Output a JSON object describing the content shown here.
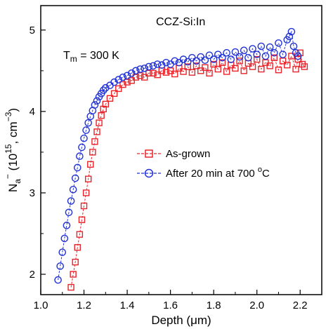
{
  "chart_data": {
    "type": "scatter",
    "title": "",
    "xlabel": {
      "text": "Depth (",
      "mu": "μ",
      "unit": "m)"
    },
    "ylabel": {
      "base": "N",
      "sub": "a",
      "sup": "−",
      "mid": " (10",
      "exp": "15",
      "tail": ", cm",
      "tail_exp": "−3",
      "close": ")"
    },
    "xlim": [
      1.0,
      2.3
    ],
    "ylim": [
      1.75,
      5.3
    ],
    "xticks": [
      "1.0",
      "1.2",
      "1.4",
      "1.6",
      "1.8",
      "2.0",
      "2.2"
    ],
    "yticks": [
      "2",
      "3",
      "4",
      "5"
    ],
    "grid": false,
    "legend_position": "center-right",
    "annotations": {
      "sample": "CCZ-Si:In",
      "temp_base": "T",
      "temp_sub": "m",
      "temp_val": " = 300 K"
    },
    "series": [
      {
        "name": "As-grown",
        "color": "#e8232a",
        "marker": "square",
        "points": [
          [
            1.14,
            1.84
          ],
          [
            1.15,
            2.0
          ],
          [
            1.16,
            2.15
          ],
          [
            1.17,
            2.33
          ],
          [
            1.18,
            2.49
          ],
          [
            1.19,
            2.67
          ],
          [
            1.2,
            2.84
          ],
          [
            1.21,
            3.0
          ],
          [
            1.22,
            3.17
          ],
          [
            1.23,
            3.35
          ],
          [
            1.24,
            3.5
          ],
          [
            1.25,
            3.63
          ],
          [
            1.26,
            3.75
          ],
          [
            1.27,
            3.86
          ],
          [
            1.28,
            3.95
          ],
          [
            1.29,
            4.03
          ],
          [
            1.3,
            4.09
          ],
          [
            1.32,
            4.16
          ],
          [
            1.34,
            4.22
          ],
          [
            1.36,
            4.28
          ],
          [
            1.38,
            4.33
          ],
          [
            1.4,
            4.36
          ],
          [
            1.42,
            4.38
          ],
          [
            1.44,
            4.42
          ],
          [
            1.46,
            4.44
          ],
          [
            1.48,
            4.42
          ],
          [
            1.5,
            4.47
          ],
          [
            1.52,
            4.47
          ],
          [
            1.54,
            4.45
          ],
          [
            1.56,
            4.5
          ],
          [
            1.58,
            4.48
          ],
          [
            1.6,
            4.5
          ],
          [
            1.62,
            4.46
          ],
          [
            1.64,
            4.53
          ],
          [
            1.66,
            4.49
          ],
          [
            1.68,
            4.55
          ],
          [
            1.7,
            4.48
          ],
          [
            1.72,
            4.56
          ],
          [
            1.74,
            4.5
          ],
          [
            1.76,
            4.54
          ],
          [
            1.78,
            4.47
          ],
          [
            1.8,
            4.58
          ],
          [
            1.82,
            4.52
          ],
          [
            1.84,
            4.6
          ],
          [
            1.86,
            4.49
          ],
          [
            1.88,
            4.57
          ],
          [
            1.9,
            4.53
          ],
          [
            1.92,
            4.62
          ],
          [
            1.94,
            4.5
          ],
          [
            1.96,
            4.59
          ],
          [
            1.98,
            4.55
          ],
          [
            2.0,
            4.64
          ],
          [
            2.02,
            4.52
          ],
          [
            2.04,
            4.6
          ],
          [
            2.06,
            4.56
          ],
          [
            2.08,
            4.66
          ],
          [
            2.1,
            4.51
          ],
          [
            2.12,
            4.62
          ],
          [
            2.14,
            4.57
          ],
          [
            2.16,
            4.68
          ],
          [
            2.18,
            4.52
          ],
          [
            2.19,
            4.64
          ],
          [
            2.2,
            4.72
          ],
          [
            2.21,
            4.58
          ],
          [
            2.22,
            4.55
          ]
        ]
      },
      {
        "name": "After 20 min at 700 °C",
        "name_base": "After 20 min at 700 ",
        "name_sup": "o",
        "name_tail": "C",
        "color": "#2233d6",
        "marker": "circle",
        "points": [
          [
            1.08,
            1.93
          ],
          [
            1.09,
            2.1
          ],
          [
            1.1,
            2.27
          ],
          [
            1.11,
            2.44
          ],
          [
            1.12,
            2.6
          ],
          [
            1.13,
            2.76
          ],
          [
            1.14,
            2.9
          ],
          [
            1.15,
            3.04
          ],
          [
            1.16,
            3.18
          ],
          [
            1.17,
            3.31
          ],
          [
            1.18,
            3.45
          ],
          [
            1.19,
            3.56
          ],
          [
            1.2,
            3.67
          ],
          [
            1.21,
            3.77
          ],
          [
            1.22,
            3.86
          ],
          [
            1.23,
            3.94
          ],
          [
            1.24,
            4.01
          ],
          [
            1.25,
            4.08
          ],
          [
            1.26,
            4.13
          ],
          [
            1.27,
            4.18
          ],
          [
            1.28,
            4.22
          ],
          [
            1.29,
            4.26
          ],
          [
            1.3,
            4.29
          ],
          [
            1.32,
            4.32
          ],
          [
            1.34,
            4.36
          ],
          [
            1.36,
            4.39
          ],
          [
            1.38,
            4.42
          ],
          [
            1.4,
            4.44
          ],
          [
            1.42,
            4.47
          ],
          [
            1.44,
            4.5
          ],
          [
            1.46,
            4.52
          ],
          [
            1.48,
            4.53
          ],
          [
            1.5,
            4.55
          ],
          [
            1.52,
            4.56
          ],
          [
            1.54,
            4.58
          ],
          [
            1.56,
            4.57
          ],
          [
            1.58,
            4.6
          ],
          [
            1.6,
            4.58
          ],
          [
            1.62,
            4.62
          ],
          [
            1.64,
            4.6
          ],
          [
            1.66,
            4.64
          ],
          [
            1.68,
            4.61
          ],
          [
            1.7,
            4.66
          ],
          [
            1.72,
            4.62
          ],
          [
            1.74,
            4.67
          ],
          [
            1.76,
            4.63
          ],
          [
            1.78,
            4.69
          ],
          [
            1.8,
            4.64
          ],
          [
            1.82,
            4.7
          ],
          [
            1.84,
            4.66
          ],
          [
            1.86,
            4.72
          ],
          [
            1.88,
            4.64
          ],
          [
            1.9,
            4.73
          ],
          [
            1.92,
            4.67
          ],
          [
            1.94,
            4.75
          ],
          [
            1.96,
            4.66
          ],
          [
            1.98,
            4.77
          ],
          [
            2.0,
            4.7
          ],
          [
            2.02,
            4.8
          ],
          [
            2.04,
            4.68
          ],
          [
            2.06,
            4.79
          ],
          [
            2.08,
            4.72
          ],
          [
            2.1,
            4.84
          ],
          [
            2.12,
            4.7
          ],
          [
            2.14,
            4.88
          ],
          [
            2.15,
            4.92
          ],
          [
            2.16,
            4.98
          ],
          [
            2.17,
            4.8
          ],
          [
            2.18,
            4.72
          ],
          [
            2.19,
            4.68
          ]
        ]
      }
    ]
  }
}
